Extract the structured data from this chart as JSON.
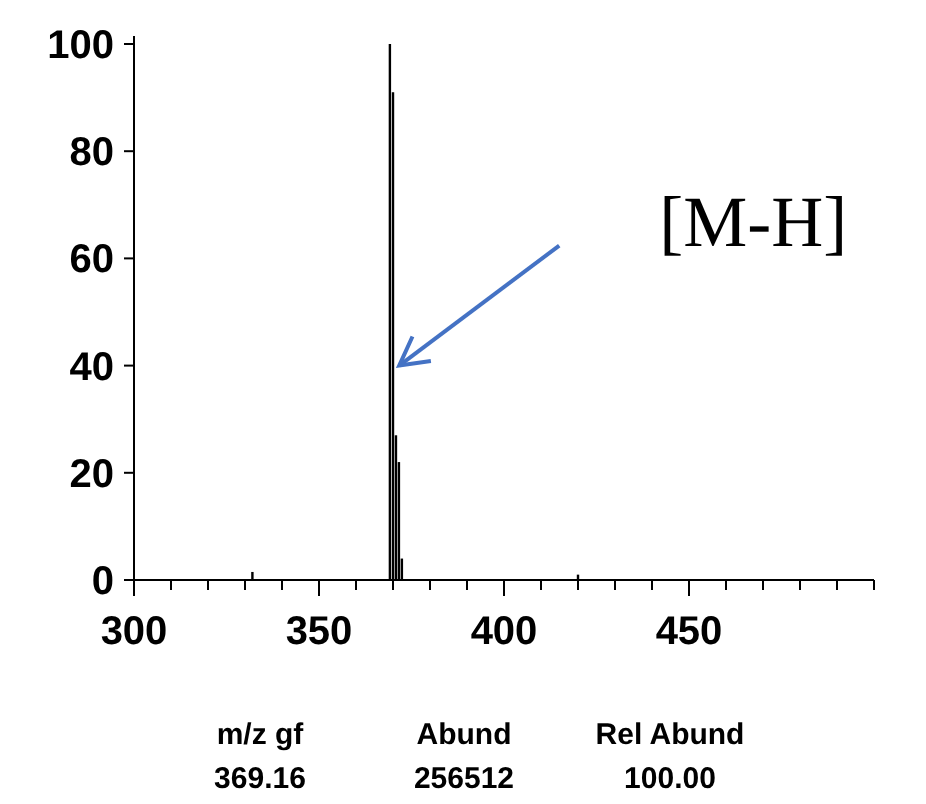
{
  "chart_data": {
    "type": "bar",
    "x": [
      332,
      369.16,
      370,
      370.8,
      371.6,
      372.4,
      420
    ],
    "values": [
      1.5,
      100,
      91,
      27,
      22,
      4,
      1
    ],
    "color": "#000000",
    "xlim": [
      300,
      500
    ],
    "xticks": [
      300,
      {
        "value": 310,
        "label": null
      },
      {
        "value": 320,
        "label": null
      },
      {
        "value": 330,
        "label": null
      },
      {
        "value": 340,
        "label": null
      },
      350,
      {
        "value": 360,
        "label": null
      },
      {
        "value": 370,
        "label": null
      },
      {
        "value": 380,
        "label": null
      },
      {
        "value": 390,
        "label": null
      },
      400,
      {
        "value": 410,
        "label": null
      },
      {
        "value": 420,
        "label": null
      },
      {
        "value": 430,
        "label": null
      },
      {
        "value": 440,
        "label": null
      },
      450,
      {
        "value": 460,
        "label": null
      },
      {
        "value": 470,
        "label": null
      },
      {
        "value": 480,
        "label": null
      },
      {
        "value": 490,
        "label": null
      },
      {
        "value": 500,
        "label": null
      }
    ],
    "ylim": [
      0,
      100
    ],
    "yticks": [
      0,
      20,
      40,
      60,
      80,
      100
    ],
    "grid": false,
    "annotations": [
      "[M-H]",
      "m/z gf",
      "Abund",
      "Rel Abund",
      "369.16",
      "256512",
      "100.00"
    ]
  }
}
